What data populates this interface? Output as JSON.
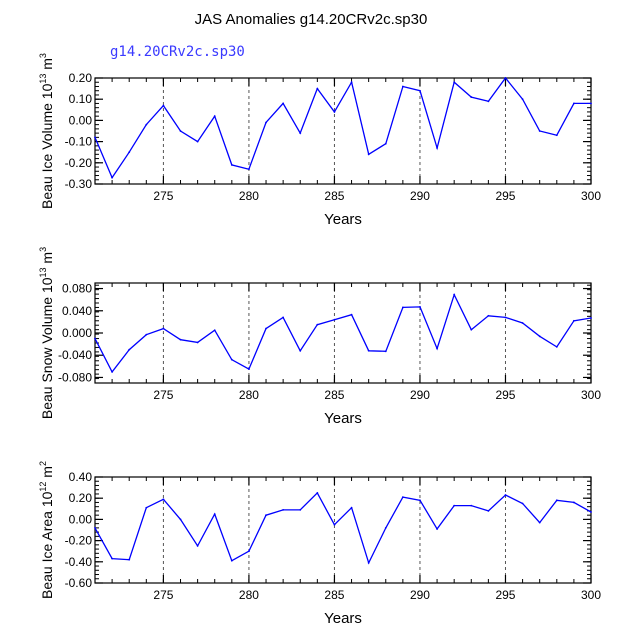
{
  "figure": {
    "title": "JAS Anomalies g14.20CRv2c.sp30",
    "subtitle": "g14.20CRv2c.sp30"
  },
  "colors": {
    "series": "#0000ff",
    "axes": "#000000",
    "subtitle": "#3a3aff",
    "refline": "#555555"
  },
  "chart_data": [
    {
      "type": "line",
      "ylabel": "Beau Ice Volume",
      "ylabel_unit": "10^13 m^3",
      "ylabel_unit_base": "10",
      "ylabel_unit_exp": "13",
      "ylabel_unit_m": "m",
      "ylabel_unit_mexp": "3",
      "xlabel": "Years",
      "xlim": [
        271,
        300
      ],
      "ylim": [
        -0.3,
        0.2
      ],
      "xticks": [
        275,
        280,
        285,
        290,
        295,
        300
      ],
      "xtick_labels": [
        "275",
        "280",
        "285",
        "290",
        "295",
        "300"
      ],
      "yticks": [
        0.2,
        0.1,
        0.0,
        -0.1,
        -0.2,
        -0.3
      ],
      "ytick_labels": [
        "0.20",
        "0.10",
        "0.00",
        "-0.10",
        "-0.20",
        "-0.30"
      ],
      "reference_lines_x": [
        275,
        280,
        285,
        290,
        295
      ],
      "series": [
        {
          "x": [
            271,
            272,
            273,
            274,
            275,
            276,
            277,
            278,
            279,
            280,
            281,
            282,
            283,
            284,
            285,
            286,
            287,
            288,
            289,
            290,
            291,
            292,
            293,
            294,
            295,
            296,
            297,
            298,
            299,
            300
          ],
          "values": [
            -0.08,
            -0.27,
            -0.15,
            -0.02,
            0.07,
            -0.05,
            -0.1,
            0.02,
            -0.21,
            -0.23,
            -0.01,
            0.08,
            -0.06,
            0.15,
            0.04,
            0.18,
            -0.16,
            -0.11,
            0.16,
            0.14,
            -0.13,
            0.18,
            0.11,
            0.09,
            0.2,
            0.1,
            -0.05,
            -0.07,
            0.08,
            0.08
          ]
        }
      ]
    },
    {
      "type": "line",
      "ylabel": "Beau Snow Volume",
      "ylabel_unit": "10^13 m^3",
      "ylabel_unit_base": "10",
      "ylabel_unit_exp": "13",
      "ylabel_unit_m": "m",
      "ylabel_unit_mexp": "3",
      "xlabel": "Years",
      "xlim": [
        271,
        300
      ],
      "ylim": [
        -0.09,
        0.09
      ],
      "xticks": [
        275,
        280,
        285,
        290,
        295,
        300
      ],
      "xtick_labels": [
        "275",
        "280",
        "285",
        "290",
        "295",
        "300"
      ],
      "yticks": [
        0.08,
        0.04,
        0.0,
        -0.04,
        -0.08
      ],
      "ytick_labels": [
        "0.080",
        "0.040",
        "0.000",
        "-0.040",
        "-0.080"
      ],
      "reference_lines_x": [
        275,
        280,
        285,
        290,
        295
      ],
      "series": [
        {
          "x": [
            271,
            272,
            273,
            274,
            275,
            276,
            277,
            278,
            279,
            280,
            281,
            282,
            283,
            284,
            285,
            286,
            287,
            288,
            289,
            290,
            291,
            292,
            293,
            294,
            295,
            296,
            297,
            298,
            299,
            300
          ],
          "values": [
            -0.01,
            -0.07,
            -0.03,
            -0.003,
            0.008,
            -0.012,
            -0.017,
            0.005,
            -0.048,
            -0.065,
            0.008,
            0.028,
            -0.032,
            0.015,
            0.024,
            0.033,
            -0.032,
            -0.033,
            0.046,
            0.047,
            -0.028,
            0.069,
            0.006,
            0.031,
            0.028,
            0.018,
            -0.006,
            -0.025,
            0.022,
            0.027
          ]
        }
      ]
    },
    {
      "type": "line",
      "ylabel": "Beau Ice Area",
      "ylabel_unit": "10^12 m^2",
      "ylabel_unit_base": "10",
      "ylabel_unit_exp": "12",
      "ylabel_unit_m": "m",
      "ylabel_unit_mexp": "2",
      "xlabel": "Years",
      "xlim": [
        271,
        300
      ],
      "ylim": [
        -0.6,
        0.4
      ],
      "xticks": [
        275,
        280,
        285,
        290,
        295,
        300
      ],
      "xtick_labels": [
        "275",
        "280",
        "285",
        "290",
        "295",
        "300"
      ],
      "yticks": [
        0.4,
        0.2,
        0.0,
        -0.2,
        -0.4,
        -0.6
      ],
      "ytick_labels": [
        "0.40",
        "0.20",
        "0.00",
        "-0.20",
        "-0.40",
        "-0.60"
      ],
      "reference_lines_x": [
        275,
        280,
        285,
        290,
        295
      ],
      "series": [
        {
          "x": [
            271,
            272,
            273,
            274,
            275,
            276,
            277,
            278,
            279,
            280,
            281,
            282,
            283,
            284,
            285,
            286,
            287,
            288,
            289,
            290,
            291,
            292,
            293,
            294,
            295,
            296,
            297,
            298,
            299,
            300
          ],
          "values": [
            -0.08,
            -0.37,
            -0.38,
            0.11,
            0.19,
            0.0,
            -0.25,
            0.05,
            -0.39,
            -0.3,
            0.04,
            0.09,
            0.09,
            0.25,
            -0.05,
            0.11,
            -0.41,
            -0.08,
            0.21,
            0.18,
            -0.09,
            0.13,
            0.13,
            0.08,
            0.23,
            0.15,
            -0.03,
            0.18,
            0.16,
            0.07
          ]
        }
      ]
    }
  ]
}
